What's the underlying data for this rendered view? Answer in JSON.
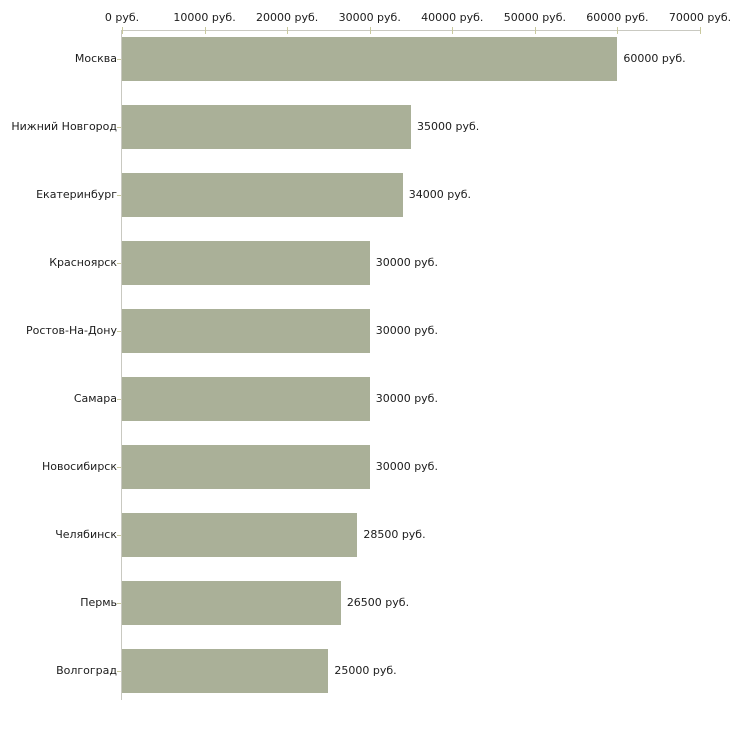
{
  "chart_data": {
    "type": "bar",
    "orientation": "horizontal",
    "title": "",
    "xlabel": "",
    "ylabel": "",
    "categories": [
      "Москва",
      "Нижний Новгород",
      "Екатеринбург",
      "Красноярск",
      "Ростов-На-Дону",
      "Самара",
      "Новосибирск",
      "Челябинск",
      "Пермь",
      "Волгоград"
    ],
    "values": [
      60000,
      35000,
      34000,
      30000,
      30000,
      30000,
      30000,
      28500,
      26500,
      25000
    ],
    "value_labels": [
      "60000 руб.",
      "35000 руб.",
      "34000 руб.",
      "30000 руб.",
      "30000 руб.",
      "30000 руб.",
      "30000 руб.",
      "28500 руб.",
      "26500 руб.",
      "25000 руб."
    ],
    "x_ticks": [
      0,
      10000,
      20000,
      30000,
      40000,
      50000,
      60000,
      70000
    ],
    "x_tick_labels": [
      "0 руб.",
      "10000 руб.",
      "20000 руб.",
      "30000 руб.",
      "40000 руб.",
      "50000 руб.",
      "60000 руб.",
      "70000 руб."
    ],
    "xlim": [
      0,
      70000
    ],
    "grid": false,
    "legend": null,
    "colors": {
      "bar_fill": "#aab098",
      "axis_line": "#c9c9c1",
      "tick_mark": "#c9c99e",
      "text": "#1c1c1c",
      "background": "#ffffff"
    }
  }
}
